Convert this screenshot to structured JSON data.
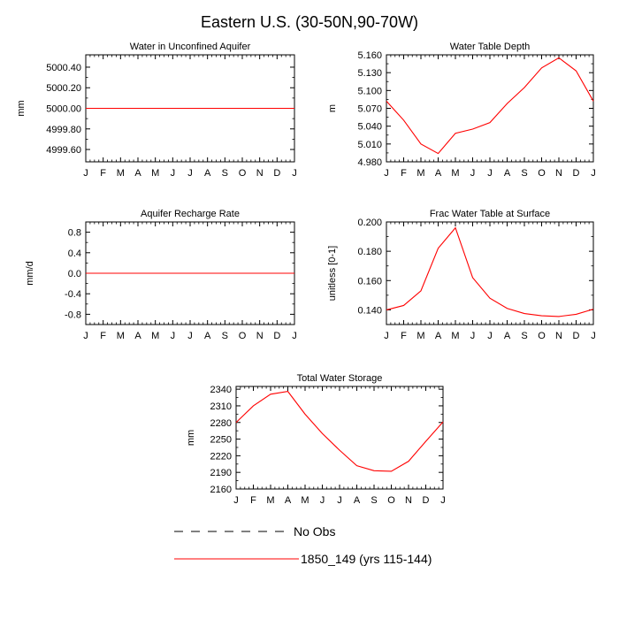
{
  "page": {
    "title": "Eastern U.S. (30-50N,90-70W)"
  },
  "months": [
    "J",
    "F",
    "M",
    "A",
    "M",
    "J",
    "J",
    "A",
    "S",
    "O",
    "N",
    "D",
    "J"
  ],
  "series_color": "#ff0000",
  "chart_data": [
    {
      "type": "line",
      "title": "Water in Unconfined Aquifer",
      "ylabel": "mm",
      "ylim": [
        4999.48,
        5000.52
      ],
      "yticks": [
        4999.6,
        4999.8,
        5000.0,
        5000.2,
        5000.4
      ],
      "ytick_labels": [
        "4999.60",
        "4999.80",
        "5000.00",
        "5000.20",
        "5000.40"
      ],
      "series": [
        {
          "name": "1850_149 (yrs 115-144)",
          "values": [
            5000,
            5000,
            5000,
            5000,
            5000,
            5000,
            5000,
            5000,
            5000,
            5000,
            5000,
            5000,
            5000
          ]
        }
      ]
    },
    {
      "type": "line",
      "title": "Water Table Depth",
      "ylabel": "m",
      "ylim": [
        4.98,
        5.16
      ],
      "yticks": [
        4.98,
        5.01,
        5.04,
        5.07,
        5.1,
        5.13,
        5.16
      ],
      "ytick_labels": [
        "4.980",
        "5.010",
        "5.040",
        "5.070",
        "5.100",
        "5.130",
        "5.160"
      ],
      "series": [
        {
          "name": "1850_149 (yrs 115-144)",
          "values": [
            5.082,
            5.05,
            5.01,
            4.994,
            5.028,
            5.035,
            5.046,
            5.078,
            5.105,
            5.138,
            5.155,
            5.133,
            5.082
          ]
        }
      ]
    },
    {
      "type": "line",
      "title": "Aquifer Recharge Rate",
      "ylabel": "mm/d",
      "ylim": [
        -1.0,
        1.0
      ],
      "yticks": [
        -0.8,
        -0.4,
        0.0,
        0.4,
        0.8
      ],
      "ytick_labels": [
        "-0.8",
        "-0.4",
        "0.0",
        "0.4",
        "0.8"
      ],
      "series": [
        {
          "name": "1850_149 (yrs 115-144)",
          "values": [
            0,
            0,
            0,
            0,
            0,
            0,
            0,
            0,
            0,
            0,
            0,
            0,
            0
          ]
        }
      ]
    },
    {
      "type": "line",
      "title": "Frac Water Table at Surface",
      "ylabel": "unitless [0-1]",
      "ylim": [
        0.13,
        0.2
      ],
      "yticks": [
        0.14,
        0.16,
        0.18,
        0.2
      ],
      "ytick_labels": [
        "0.140",
        "0.160",
        "0.180",
        "0.200"
      ],
      "series": [
        {
          "name": "1850_149 (yrs 115-144)",
          "values": [
            0.14,
            0.143,
            0.153,
            0.182,
            0.196,
            0.162,
            0.148,
            0.141,
            0.1375,
            0.136,
            0.1355,
            0.137,
            0.1405
          ]
        }
      ]
    },
    {
      "type": "line",
      "title": "Total Water Storage",
      "ylabel": "mm",
      "ylim": [
        2160,
        2345
      ],
      "yticks": [
        2160,
        2190,
        2220,
        2250,
        2280,
        2310,
        2340
      ],
      "ytick_labels": [
        "2160",
        "2190",
        "2220",
        "2250",
        "2280",
        "2310",
        "2340"
      ],
      "series": [
        {
          "name": "1850_149 (yrs 115-144)",
          "values": [
            2280,
            2310,
            2331,
            2336,
            2295,
            2260,
            2230,
            2202,
            2193,
            2192,
            2210,
            2246,
            2281
          ]
        }
      ]
    }
  ],
  "legend": [
    {
      "style": "dashed",
      "color": "#000000",
      "label": "No Obs"
    },
    {
      "style": "solid",
      "color": "#ff0000",
      "label": "1850_149 (yrs 115-144)"
    }
  ]
}
